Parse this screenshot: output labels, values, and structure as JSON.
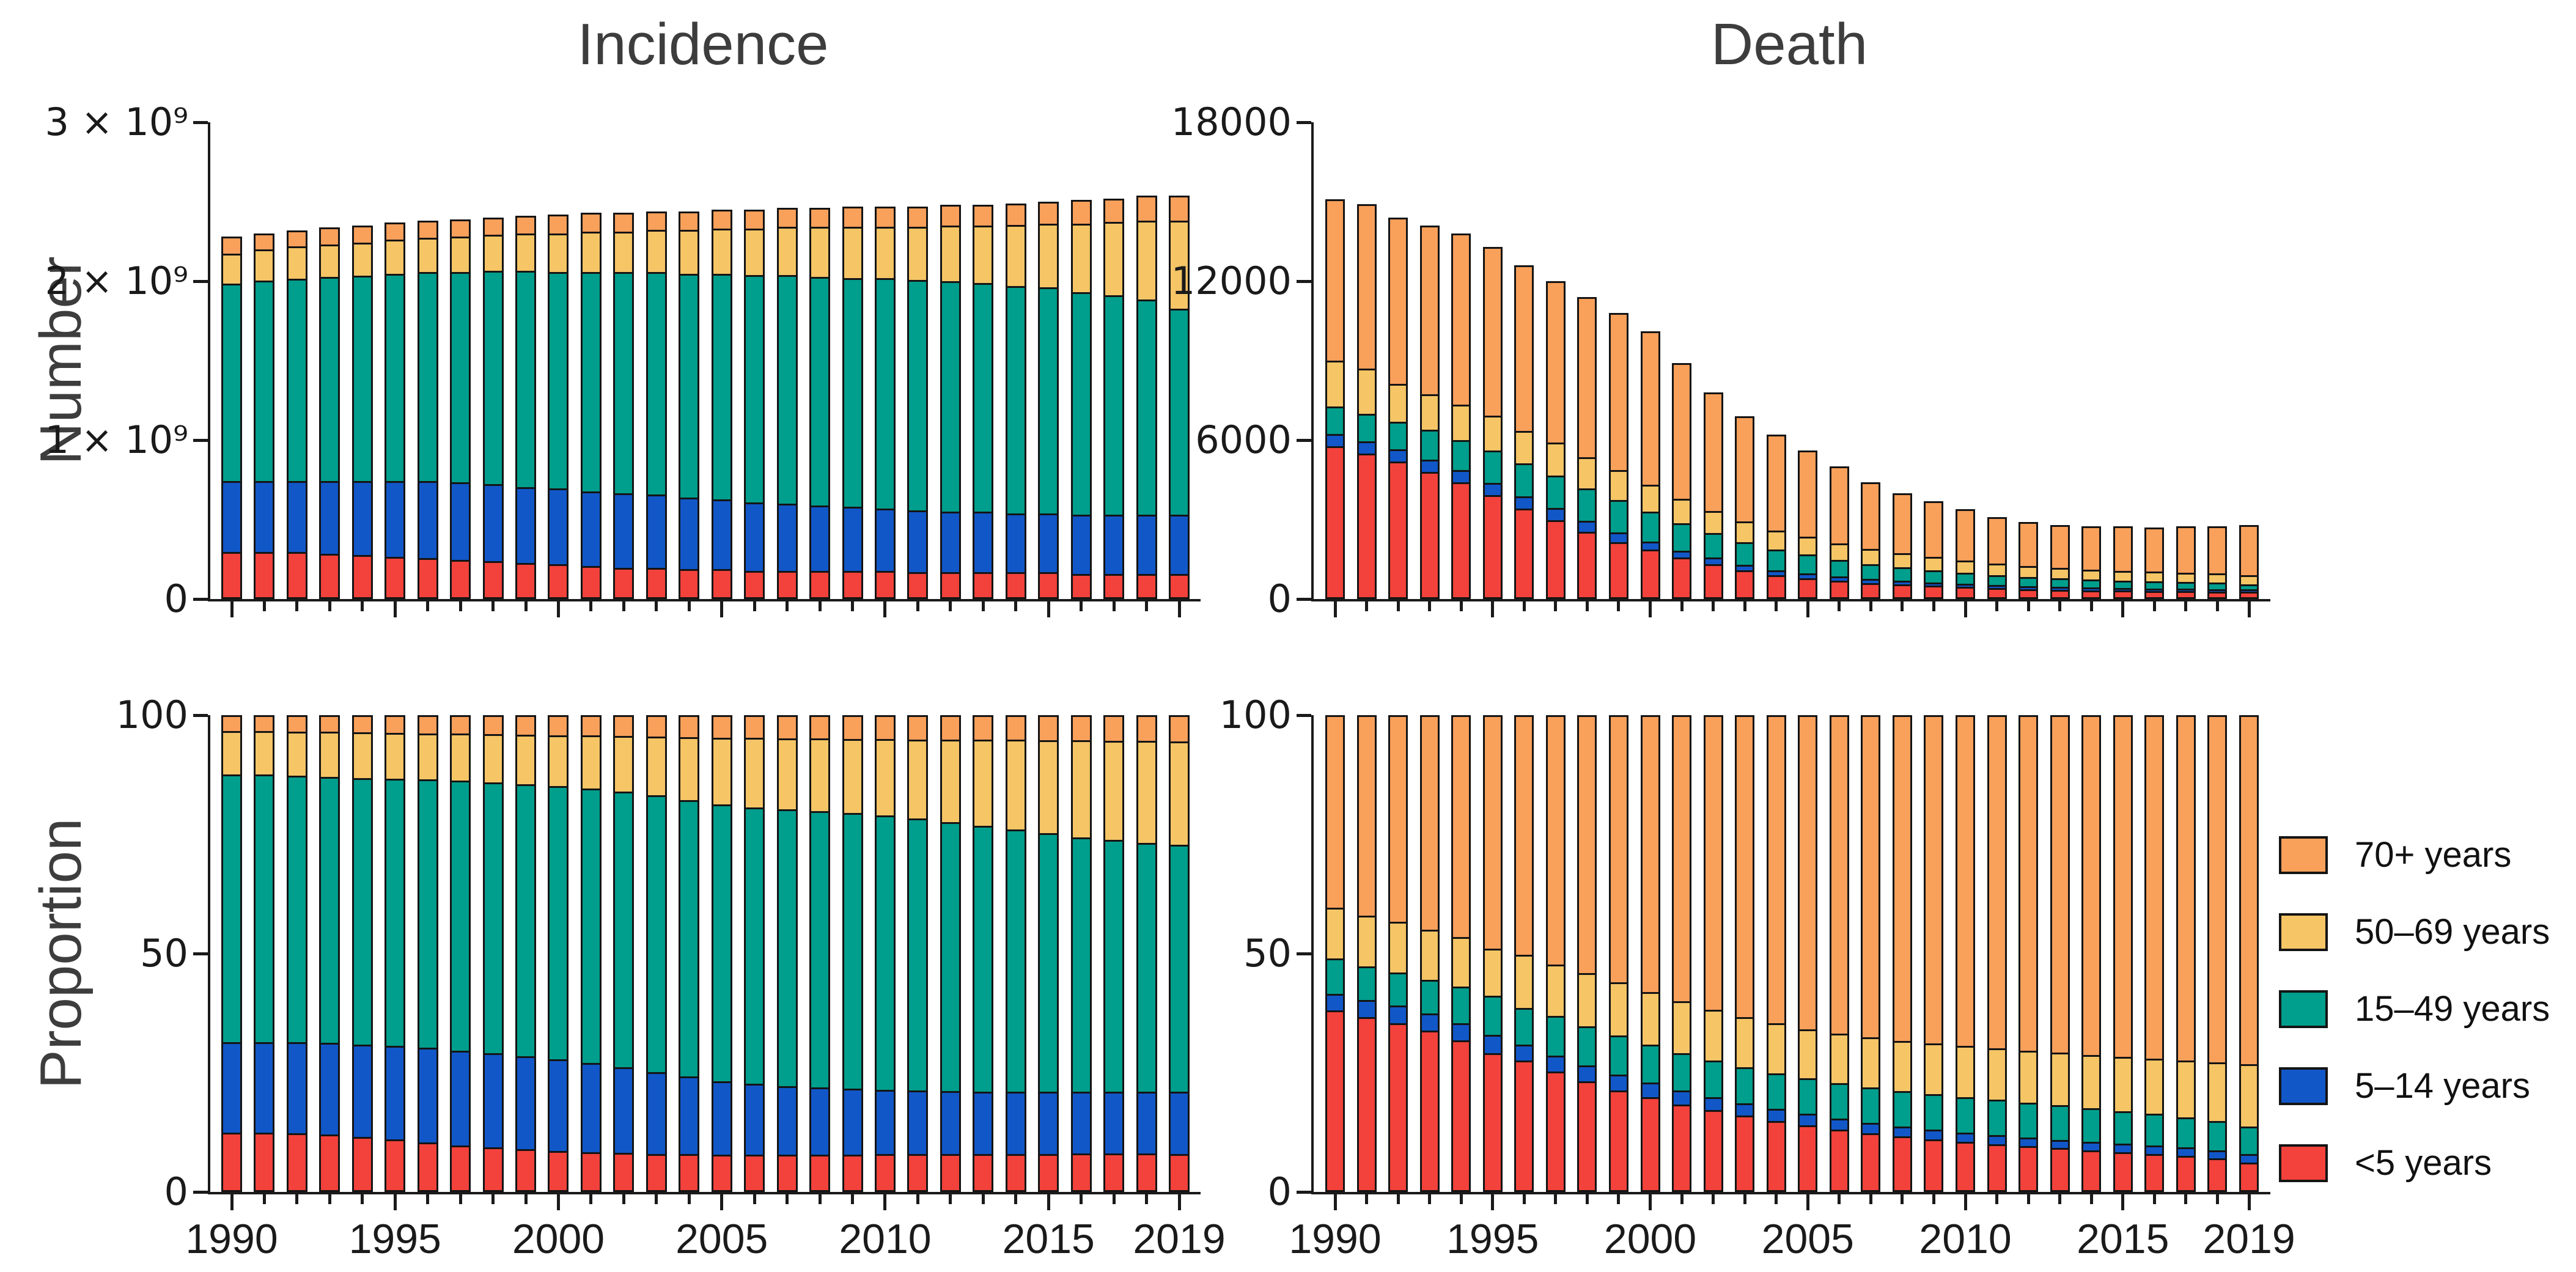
{
  "figure": {
    "column_titles": [
      "Incidence",
      "Death"
    ],
    "row_labels": [
      "Number",
      "Proportion"
    ]
  },
  "legend": {
    "items": [
      {
        "label": "70+ years",
        "color": "#F9A05B"
      },
      {
        "label": "50–69 years",
        "color": "#F5C566"
      },
      {
        "label": "15–49 years",
        "color": "#009E8C"
      },
      {
        "label": "5–14 years",
        "color": "#1157C8"
      },
      {
        "label": "<5 years",
        "color": "#F2423B"
      }
    ]
  },
  "chart_data": [
    {
      "id": "incidence-number",
      "type": "bar",
      "stacked": true,
      "column": "Incidence",
      "row": "Number",
      "unit": "cases (billions)",
      "ylim": [
        0,
        3
      ],
      "yticks": [
        {
          "value": 0,
          "label": "0"
        },
        {
          "value": 1,
          "label": "1 × 10⁹"
        },
        {
          "value": 2,
          "label": "2 × 10⁹"
        },
        {
          "value": 3,
          "label": "3 × 10⁹"
        }
      ],
      "x_years": [
        1990,
        1991,
        1992,
        1993,
        1994,
        1995,
        1996,
        1997,
        1998,
        1999,
        2000,
        2001,
        2002,
        2003,
        2004,
        2005,
        2006,
        2007,
        2008,
        2009,
        2010,
        2011,
        2012,
        2013,
        2014,
        2015,
        2016,
        2017,
        2018,
        2019
      ],
      "x_tick_labels": [
        {
          "index": 0,
          "label": "1990"
        },
        {
          "index": 5,
          "label": "1995"
        },
        {
          "index": 10,
          "label": "2000"
        },
        {
          "index": 15,
          "label": "2005"
        },
        {
          "index": 20,
          "label": "2010"
        },
        {
          "index": 25,
          "label": "2015"
        },
        {
          "index": 29,
          "label": "2019"
        }
      ],
      "show_x_labels": false,
      "series": [
        {
          "name": "<5 years",
          "color": "#F2423B",
          "values": [
            0.28,
            0.28,
            0.28,
            0.27,
            0.26,
            0.25,
            0.24,
            0.23,
            0.22,
            0.21,
            0.2,
            0.19,
            0.18,
            0.18,
            0.17,
            0.17,
            0.16,
            0.16,
            0.16,
            0.16,
            0.16,
            0.15,
            0.15,
            0.15,
            0.15,
            0.15,
            0.14,
            0.14,
            0.14,
            0.14
          ]
        },
        {
          "name": "5–14 years",
          "color": "#1157C8",
          "values": [
            0.45,
            0.45,
            0.45,
            0.46,
            0.47,
            0.48,
            0.49,
            0.49,
            0.49,
            0.48,
            0.48,
            0.47,
            0.47,
            0.46,
            0.45,
            0.44,
            0.43,
            0.42,
            0.41,
            0.4,
            0.39,
            0.39,
            0.38,
            0.38,
            0.37,
            0.37,
            0.37,
            0.37,
            0.37,
            0.37
          ]
        },
        {
          "name": "15–49 years",
          "color": "#009E8C",
          "values": [
            1.27,
            1.29,
            1.3,
            1.31,
            1.32,
            1.33,
            1.34,
            1.35,
            1.37,
            1.39,
            1.39,
            1.41,
            1.42,
            1.43,
            1.44,
            1.45,
            1.46,
            1.47,
            1.47,
            1.47,
            1.48,
            1.48,
            1.48,
            1.47,
            1.46,
            1.45,
            1.43,
            1.41,
            1.38,
            1.32
          ]
        },
        {
          "name": "50–69 years",
          "color": "#F5C566",
          "values": [
            0.18,
            0.19,
            0.2,
            0.2,
            0.2,
            0.21,
            0.21,
            0.22,
            0.22,
            0.23,
            0.24,
            0.25,
            0.25,
            0.26,
            0.27,
            0.28,
            0.29,
            0.3,
            0.31,
            0.32,
            0.32,
            0.33,
            0.35,
            0.36,
            0.38,
            0.4,
            0.43,
            0.46,
            0.5,
            0.56
          ]
        },
        {
          "name": "70+ years",
          "color": "#F9A05B",
          "values": [
            0.1,
            0.09,
            0.09,
            0.1,
            0.1,
            0.1,
            0.1,
            0.1,
            0.1,
            0.1,
            0.11,
            0.11,
            0.11,
            0.11,
            0.11,
            0.11,
            0.11,
            0.11,
            0.11,
            0.12,
            0.12,
            0.12,
            0.12,
            0.12,
            0.13,
            0.13,
            0.14,
            0.14,
            0.15,
            0.15
          ]
        }
      ]
    },
    {
      "id": "death-number",
      "type": "bar",
      "stacked": true,
      "column": "Death",
      "row": "Number",
      "unit": "deaths",
      "ylim": [
        0,
        18000
      ],
      "yticks": [
        {
          "value": 0,
          "label": "0"
        },
        {
          "value": 6000,
          "label": "6000"
        },
        {
          "value": 12000,
          "label": "12000"
        },
        {
          "value": 18000,
          "label": "18000"
        }
      ],
      "x_years": [
        1990,
        1991,
        1992,
        1993,
        1994,
        1995,
        1996,
        1997,
        1998,
        1999,
        2000,
        2001,
        2002,
        2003,
        2004,
        2005,
        2006,
        2007,
        2008,
        2009,
        2010,
        2011,
        2012,
        2013,
        2014,
        2015,
        2016,
        2017,
        2018,
        2019
      ],
      "x_tick_labels": [
        {
          "index": 0,
          "label": "1990"
        },
        {
          "index": 5,
          "label": "1995"
        },
        {
          "index": 10,
          "label": "2000"
        },
        {
          "index": 15,
          "label": "2005"
        },
        {
          "index": 20,
          "label": "2010"
        },
        {
          "index": 25,
          "label": "2015"
        },
        {
          "index": 29,
          "label": "2019"
        }
      ],
      "show_x_labels": false,
      "series": [
        {
          "name": "<5 years",
          "color": "#F2423B",
          "values": [
            5800,
            5500,
            5200,
            4800,
            4400,
            3900,
            3400,
            2950,
            2500,
            2100,
            1800,
            1500,
            1250,
            1000,
            820,
            700,
            600,
            520,
            460,
            410,
            360,
            320,
            280,
            250,
            230,
            210,
            195,
            180,
            165,
            150
          ]
        },
        {
          "name": "5–14 years",
          "color": "#1157C8",
          "values": [
            400,
            400,
            400,
            400,
            400,
            400,
            400,
            400,
            350,
            300,
            250,
            200,
            200,
            150,
            130,
            120,
            100,
            90,
            80,
            70,
            60,
            55,
            50,
            45,
            40,
            40,
            35,
            35,
            30,
            30
          ]
        },
        {
          "name": "15–49 years",
          "color": "#009E8C",
          "values": [
            1000,
            1000,
            1000,
            1100,
            1100,
            1200,
            1200,
            1200,
            1200,
            1200,
            1100,
            1000,
            900,
            850,
            760,
            700,
            620,
            540,
            480,
            430,
            390,
            350,
            320,
            290,
            270,
            250,
            235,
            220,
            200,
            140
          ]
        },
        {
          "name": "50–69 years",
          "color": "#F5C566",
          "values": [
            1700,
            1700,
            1400,
            1300,
            1300,
            1300,
            1200,
            1200,
            1150,
            1100,
            1000,
            900,
            800,
            750,
            700,
            650,
            600,
            570,
            530,
            490,
            460,
            430,
            400,
            380,
            360,
            350,
            340,
            335,
            330,
            320
          ]
        },
        {
          "name": "70+ years",
          "color": "#F9A05B",
          "values": [
            6200,
            6300,
            6400,
            6500,
            6600,
            6500,
            6400,
            6250,
            6200,
            6100,
            5950,
            5300,
            4650,
            4150,
            3790,
            3430,
            3080,
            2680,
            2450,
            2300,
            2130,
            1945,
            1850,
            1835,
            1850,
            1900,
            1895,
            1980,
            2025,
            2160
          ]
        }
      ]
    },
    {
      "id": "incidence-proportion",
      "type": "bar",
      "stacked": true,
      "column": "Incidence",
      "row": "Proportion",
      "unit": "percent",
      "ylim": [
        0,
        100
      ],
      "yticks": [
        {
          "value": 0,
          "label": "0"
        },
        {
          "value": 50,
          "label": "50"
        },
        {
          "value": 100,
          "label": "100"
        }
      ],
      "x_years": [
        1990,
        1991,
        1992,
        1993,
        1994,
        1995,
        1996,
        1997,
        1998,
        1999,
        2000,
        2001,
        2002,
        2003,
        2004,
        2005,
        2006,
        2007,
        2008,
        2009,
        2010,
        2011,
        2012,
        2013,
        2014,
        2015,
        2016,
        2017,
        2018,
        2019
      ],
      "x_tick_labels": [
        {
          "index": 0,
          "label": "1990"
        },
        {
          "index": 5,
          "label": "1995"
        },
        {
          "index": 10,
          "label": "2000"
        },
        {
          "index": 15,
          "label": "2005"
        },
        {
          "index": 20,
          "label": "2010"
        },
        {
          "index": 25,
          "label": "2015"
        },
        {
          "index": 29,
          "label": "2019"
        }
      ],
      "show_x_labels": true,
      "series": [
        {
          "name": "<5 years",
          "color": "#F2423B",
          "values": [
            12.0,
            12.0,
            11.8,
            11.5,
            11.0,
            10.5,
            9.8,
            9.2,
            8.8,
            8.4,
            8.0,
            7.8,
            7.6,
            7.4,
            7.3,
            7.2,
            7.2,
            7.2,
            7.2,
            7.2,
            7.3,
            7.3,
            7.3,
            7.3,
            7.4,
            7.4,
            7.5,
            7.5,
            7.5,
            7.3
          ]
        },
        {
          "name": "5–14 years",
          "color": "#1157C8",
          "values": [
            19.0,
            19.0,
            19.2,
            19.3,
            19.5,
            19.7,
            20.0,
            20.0,
            19.8,
            19.6,
            19.3,
            18.7,
            18.0,
            17.2,
            16.3,
            15.4,
            14.8,
            14.3,
            14.0,
            13.8,
            13.5,
            13.3,
            13.2,
            13.1,
            13.0,
            13.0,
            12.9,
            12.9,
            12.9,
            13.1
          ]
        },
        {
          "name": "15–49 years",
          "color": "#009E8C",
          "values": [
            57.0,
            57.0,
            56.8,
            56.7,
            56.8,
            57.0,
            57.2,
            57.6,
            57.8,
            58.0,
            58.3,
            58.5,
            58.8,
            59.0,
            59.0,
            59.0,
            59.0,
            59.1,
            59.0,
            58.8,
            58.5,
            58.0,
            57.3,
            56.6,
            55.8,
            55.0,
            54.2,
            53.6,
            53.0,
            52.6
          ]
        },
        {
          "name": "50–69 years",
          "color": "#F5C566",
          "values": [
            9.0,
            9.0,
            9.0,
            9.3,
            9.4,
            9.4,
            9.5,
            9.6,
            9.9,
            10.2,
            10.5,
            11.0,
            11.5,
            12.2,
            13.1,
            14.0,
            14.5,
            14.8,
            15.2,
            15.5,
            16.0,
            16.6,
            17.4,
            18.1,
            18.9,
            19.6,
            20.4,
            20.9,
            21.5,
            21.8
          ]
        },
        {
          "name": "70+ years",
          "color": "#F9A05B",
          "values": [
            3.0,
            3.0,
            3.2,
            3.2,
            3.3,
            3.4,
            3.5,
            3.6,
            3.7,
            3.8,
            3.9,
            4.0,
            4.1,
            4.2,
            4.3,
            4.4,
            4.5,
            4.6,
            4.6,
            4.7,
            4.7,
            4.8,
            4.8,
            4.9,
            4.9,
            5.0,
            5.0,
            5.1,
            5.1,
            5.2
          ]
        }
      ]
    },
    {
      "id": "death-proportion",
      "type": "bar",
      "stacked": true,
      "column": "Death",
      "row": "Proportion",
      "unit": "percent",
      "ylim": [
        0,
        100
      ],
      "yticks": [
        {
          "value": 0,
          "label": "0"
        },
        {
          "value": 50,
          "label": "50"
        },
        {
          "value": 100,
          "label": "100"
        }
      ],
      "x_years": [
        1990,
        1991,
        1992,
        1993,
        1994,
        1995,
        1996,
        1997,
        1998,
        1999,
        2000,
        2001,
        2002,
        2003,
        2004,
        2005,
        2006,
        2007,
        2008,
        2009,
        2010,
        2011,
        2012,
        2013,
        2014,
        2015,
        2016,
        2017,
        2018,
        2019
      ],
      "x_tick_labels": [
        {
          "index": 0,
          "label": "1990"
        },
        {
          "index": 5,
          "label": "1995"
        },
        {
          "index": 10,
          "label": "2000"
        },
        {
          "index": 15,
          "label": "2005"
        },
        {
          "index": 20,
          "label": "2010"
        },
        {
          "index": 25,
          "label": "2015"
        },
        {
          "index": 29,
          "label": "2019"
        }
      ],
      "show_x_labels": true,
      "series": [
        {
          "name": "<5 years",
          "color": "#F2423B",
          "values": [
            38.2,
            36.7,
            35.4,
            33.9,
            31.7,
            29.0,
            27.4,
            25.1,
            23.0,
            21.0,
            19.5,
            18.0,
            16.8,
            15.6,
            14.5,
            13.5,
            12.6,
            11.8,
            11.1,
            10.5,
            10.0,
            9.5,
            9.0,
            8.6,
            8.2,
            7.8,
            7.4,
            7.0,
            6.4,
            5.5
          ]
        },
        {
          "name": "5–14 years",
          "color": "#1157C8",
          "values": [
            3.1,
            3.3,
            3.4,
            3.2,
            3.4,
            3.5,
            3.0,
            3.0,
            3.0,
            3.0,
            2.8,
            2.6,
            2.4,
            2.3,
            2.2,
            2.1,
            2.0,
            1.9,
            1.8,
            1.7,
            1.6,
            1.5,
            1.5,
            1.4,
            1.4,
            1.4,
            1.4,
            1.4,
            1.4,
            1.4
          ]
        },
        {
          "name": "15–49 years",
          "color": "#009E8C",
          "values": [
            7.2,
            6.9,
            6.8,
            6.9,
            7.4,
            8.0,
            7.5,
            8.1,
            8.0,
            8.0,
            7.7,
            7.6,
            7.4,
            7.3,
            7.2,
            7.2,
            7.2,
            7.2,
            7.2,
            7.2,
            7.2,
            7.2,
            7.1,
            7.0,
            6.8,
            6.6,
            6.4,
            6.1,
            5.8,
            5.6
          ]
        },
        {
          "name": "50–69 years",
          "color": "#F5C566",
          "values": [
            10.5,
            10.5,
            10.5,
            10.3,
            10.2,
            9.8,
            11.0,
            10.7,
            11.0,
            11.0,
            11.0,
            10.8,
            10.6,
            10.4,
            10.3,
            10.2,
            10.2,
            10.3,
            10.4,
            10.5,
            10.6,
            10.7,
            10.8,
            10.9,
            11.0,
            11.2,
            11.4,
            11.7,
            12.2,
            13.0
          ]
        },
        {
          "name": "70+ years",
          "color": "#F9A05B",
          "values": [
            41.0,
            42.6,
            43.9,
            45.7,
            47.3,
            49.7,
            51.1,
            53.1,
            55.0,
            57.0,
            59.0,
            61.0,
            62.8,
            64.4,
            65.8,
            67.0,
            68.0,
            68.8,
            69.5,
            70.1,
            70.6,
            71.1,
            71.6,
            72.1,
            72.6,
            73.0,
            73.4,
            73.8,
            74.2,
            74.5
          ]
        }
      ]
    }
  ]
}
